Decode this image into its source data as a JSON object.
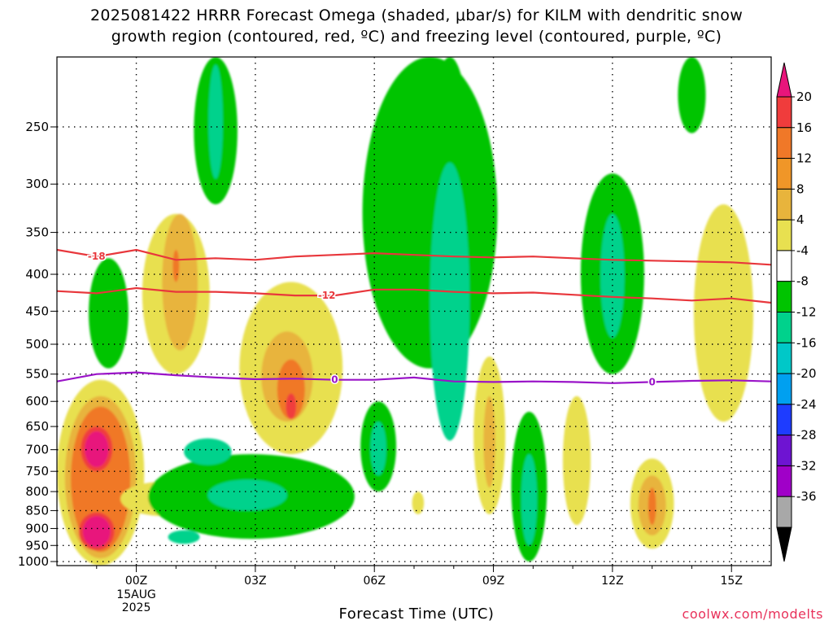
{
  "title": {
    "line1": "2025081422 HRRR Forecast Omega (shaded, μbar/s) for KILM with dendritic snow",
    "line2": "growth region (contoured, red, ºC) and freezing level (contoured, purple, ºC)"
  },
  "xlabel": "Forecast Time (UTC)",
  "credit": "coolwx.com/modelts",
  "chart_data": {
    "type": "heatmap",
    "x_axis": {
      "ticks": [
        {
          "hour": 0,
          "label": "00Z"
        },
        {
          "hour": 3,
          "label": "03Z"
        },
        {
          "hour": 6,
          "label": "06Z"
        },
        {
          "hour": 9,
          "label": "09Z"
        },
        {
          "hour": 12,
          "label": "12Z"
        },
        {
          "hour": 15,
          "label": "15Z"
        }
      ],
      "date_label": [
        "15AUG",
        "2025"
      ],
      "range_hours": [
        -2,
        16
      ]
    },
    "y_axis": {
      "ticks": [
        250,
        300,
        350,
        400,
        450,
        500,
        550,
        600,
        650,
        700,
        750,
        800,
        850,
        900,
        950,
        1000
      ],
      "range_hpa": [
        200,
        1013
      ],
      "scale": "log",
      "grid": "dotted"
    },
    "colorbar": {
      "labels": [
        "20",
        "16",
        "12",
        "8",
        "4",
        "-4",
        "-8",
        "-12",
        "-16",
        "-20",
        "-24",
        "-28",
        "-32",
        "-36"
      ],
      "colors": [
        "#e8157b",
        "#f03c3c",
        "#f07828",
        "#f09628",
        "#e8b43c",
        "#e8e050",
        "#ffffff",
        "#00c400",
        "#00d28c",
        "#00c8c8",
        "#00a0f0",
        "#1e3cff",
        "#6e14d2",
        "#a000c8",
        "#a8a8a8",
        "#000000"
      ]
    },
    "omega_features": [
      {
        "color": "#e8e050",
        "center": [
          1.0,
          440
        ],
        "radius": [
          0.85,
          110
        ]
      },
      {
        "color": "#e8e050",
        "center": [
          3.9,
          560
        ],
        "radius": [
          1.3,
          150
        ]
      },
      {
        "color": "#e8b43c",
        "center": [
          1.1,
          420
        ],
        "radius": [
          0.45,
          90
        ]
      },
      {
        "color": "#e8b43c",
        "center": [
          3.8,
          560
        ],
        "radius": [
          0.65,
          80
        ]
      },
      {
        "color": "#f07828",
        "center": [
          3.9,
          580
        ],
        "radius": [
          0.35,
          55
        ]
      },
      {
        "color": "#f03c3c",
        "center": [
          3.9,
          610
        ],
        "radius": [
          0.13,
          25
        ]
      },
      {
        "color": "#f07828",
        "center": [
          1.0,
          390
        ],
        "radius": [
          0.08,
          20
        ]
      },
      {
        "color": "#00c400",
        "center": [
          2.0,
          250
        ],
        "radius": [
          0.55,
          70
        ]
      },
      {
        "color": "#00d28c",
        "center": [
          2.0,
          250
        ],
        "radius": [
          0.18,
          45
        ]
      },
      {
        "color": "#e8e050",
        "center": [
          -0.9,
          790
        ],
        "radius": [
          1.1,
          230
        ]
      },
      {
        "color": "#e8b43c",
        "center": [
          -0.9,
          790
        ],
        "radius": [
          0.9,
          200
        ]
      },
      {
        "color": "#f07828",
        "center": [
          -0.9,
          790
        ],
        "radius": [
          0.75,
          180
        ]
      },
      {
        "color": "#e8e050",
        "center": [
          0.7,
          820
        ],
        "radius": [
          1.1,
          45
        ]
      },
      {
        "color": "#f07828",
        "center": [
          0.7,
          820
        ],
        "radius": [
          0.4,
          25
        ]
      },
      {
        "color": "#f03c3c",
        "center": [
          -1.0,
          700
        ],
        "radius": [
          0.4,
          50
        ]
      },
      {
        "color": "#e8157b",
        "center": [
          -1.0,
          700
        ],
        "radius": [
          0.3,
          40
        ]
      },
      {
        "color": "#f03c3c",
        "center": [
          -1.0,
          910
        ],
        "radius": [
          0.45,
          55
        ]
      },
      {
        "color": "#e8157b",
        "center": [
          -1.0,
          910
        ],
        "radius": [
          0.35,
          45
        ]
      },
      {
        "color": "#00c400",
        "center": [
          -0.7,
          460
        ],
        "radius": [
          0.5,
          80
        ]
      },
      {
        "color": "#00c400",
        "center": [
          2.9,
          820
        ],
        "radius": [
          2.6,
          110
        ]
      },
      {
        "color": "#00d28c",
        "center": [
          1.8,
          705
        ],
        "radius": [
          0.6,
          30
        ]
      },
      {
        "color": "#00d28c",
        "center": [
          2.8,
          810
        ],
        "radius": [
          1.0,
          40
        ]
      },
      {
        "color": "#00d28c",
        "center": [
          1.2,
          925
        ],
        "radius": [
          0.4,
          20
        ]
      },
      {
        "color": "#00c400",
        "center": [
          7.4,
          340
        ],
        "radius": [
          1.7,
          200
        ]
      },
      {
        "color": "#00c400",
        "center": [
          7.9,
          240
        ],
        "radius": [
          0.5,
          140
        ]
      },
      {
        "color": "#00d28c",
        "center": [
          7.9,
          480
        ],
        "radius": [
          0.5,
          200
        ]
      },
      {
        "color": "#00c400",
        "center": [
          6.1,
          700
        ],
        "radius": [
          0.45,
          100
        ]
      },
      {
        "color": "#00d28c",
        "center": [
          6.1,
          700
        ],
        "radius": [
          0.2,
          60
        ]
      },
      {
        "color": "#e8e050",
        "center": [
          8.9,
          690
        ],
        "radius": [
          0.4,
          170
        ]
      },
      {
        "color": "#e8b43c",
        "center": [
          8.9,
          690
        ],
        "radius": [
          0.15,
          100
        ]
      },
      {
        "color": "#e8e050",
        "center": [
          7.1,
          830
        ],
        "radius": [
          0.15,
          30
        ]
      },
      {
        "color": "#00c400",
        "center": [
          9.9,
          810
        ],
        "radius": [
          0.45,
          190
        ]
      },
      {
        "color": "#00d28c",
        "center": [
          9.9,
          830
        ],
        "radius": [
          0.2,
          120
        ]
      },
      {
        "color": "#e8e050",
        "center": [
          11.1,
          740
        ],
        "radius": [
          0.35,
          150
        ]
      },
      {
        "color": "#00c400",
        "center": [
          12.0,
          420
        ],
        "radius": [
          0.8,
          130
        ]
      },
      {
        "color": "#00d28c",
        "center": [
          12.0,
          410
        ],
        "radius": [
          0.3,
          80
        ]
      },
      {
        "color": "#00c400",
        "center": [
          14.0,
          220
        ],
        "radius": [
          0.35,
          35
        ]
      },
      {
        "color": "#e8e050",
        "center": [
          13.0,
          840
        ],
        "radius": [
          0.55,
          120
        ]
      },
      {
        "color": "#e8b43c",
        "center": [
          13.0,
          840
        ],
        "radius": [
          0.35,
          80
        ]
      },
      {
        "color": "#f07828",
        "center": [
          13.0,
          840
        ],
        "radius": [
          0.1,
          50
        ]
      },
      {
        "color": "#e8e050",
        "center": [
          14.8,
          480
        ],
        "radius": [
          0.75,
          160
        ]
      }
    ],
    "contours": [
      {
        "label": "-18",
        "color": "#e8373c",
        "points": [
          [
            -2.0,
            370
          ],
          [
            -1.0,
            378
          ],
          [
            0.0,
            370
          ],
          [
            1.0,
            382
          ],
          [
            2.0,
            380
          ],
          [
            3.0,
            382
          ],
          [
            4.0,
            378
          ],
          [
            5.0,
            376
          ],
          [
            6.0,
            374
          ],
          [
            7.0,
            376
          ],
          [
            8.0,
            378
          ],
          [
            9.0,
            379
          ],
          [
            10.0,
            378
          ],
          [
            11.0,
            380
          ],
          [
            12.0,
            382
          ],
          [
            13.0,
            383
          ],
          [
            14.0,
            384
          ],
          [
            15.0,
            385
          ],
          [
            16.0,
            388
          ]
        ],
        "label_hour": -1.0
      },
      {
        "label": "-12",
        "color": "#e8373c",
        "points": [
          [
            -2.0,
            422
          ],
          [
            -1.0,
            425
          ],
          [
            0.0,
            418
          ],
          [
            1.0,
            423
          ],
          [
            2.0,
            423
          ],
          [
            3.0,
            425
          ],
          [
            4.0,
            428
          ],
          [
            5.0,
            428
          ],
          [
            6.0,
            420
          ],
          [
            7.0,
            420
          ],
          [
            8.0,
            423
          ],
          [
            9.0,
            425
          ],
          [
            10.0,
            424
          ],
          [
            11.0,
            427
          ],
          [
            12.0,
            430
          ],
          [
            13.0,
            432
          ],
          [
            14.0,
            435
          ],
          [
            15.0,
            432
          ],
          [
            16.0,
            438
          ]
        ],
        "label_hour": 4.8
      },
      {
        "label": "0",
        "color": "#9a14c8",
        "points": [
          [
            -2.0,
            563
          ],
          [
            -1.0,
            550
          ],
          [
            0.0,
            547
          ],
          [
            1.0,
            552
          ],
          [
            2.0,
            556
          ],
          [
            3.0,
            559
          ],
          [
            4.0,
            558
          ],
          [
            5.0,
            560
          ],
          [
            6.0,
            560
          ],
          [
            7.0,
            556
          ],
          [
            8.0,
            563
          ],
          [
            9.0,
            564
          ],
          [
            10.0,
            563
          ],
          [
            11.0,
            564
          ],
          [
            12.0,
            566
          ],
          [
            13.0,
            564
          ],
          [
            14.0,
            562
          ],
          [
            15.0,
            561
          ],
          [
            16.0,
            563
          ]
        ],
        "label_hour": 5.0
      },
      {
        "label": "0",
        "color": "#9a14c8",
        "points": [],
        "label_hour": 13.0
      }
    ],
    "ground_color": "#a0522d"
  }
}
